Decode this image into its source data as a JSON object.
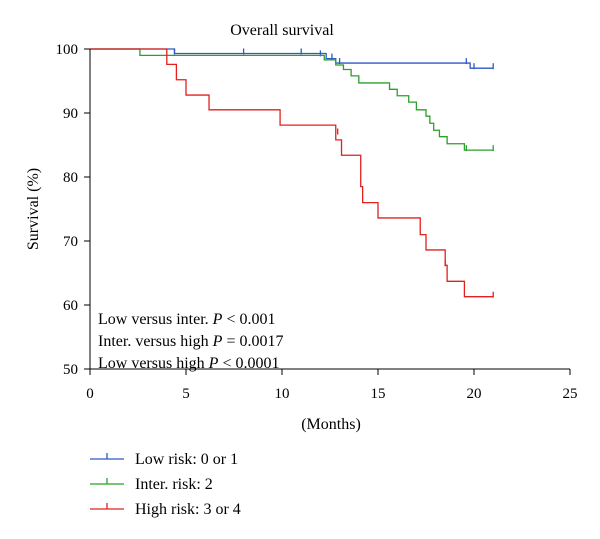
{
  "chart_data": {
    "type": "line",
    "step": true,
    "title": "Overall survival",
    "xlabel": "(Months)",
    "ylabel": "Survival (%)",
    "xlim": [
      0,
      25
    ],
    "ylim": [
      50,
      100
    ],
    "xticks": [
      0,
      5,
      10,
      15,
      20,
      25
    ],
    "yticks": [
      50,
      60,
      70,
      80,
      90,
      100
    ],
    "grid": false,
    "legend_placement": "bottom-left",
    "annotations": [
      {
        "before": "Low versus inter. ",
        "p": "P",
        "after": " < 0.001"
      },
      {
        "before": "Inter. versus high ",
        "p": "P",
        "after": " = 0.0017"
      },
      {
        "before": "Low versus high ",
        "p": "P",
        "after": " < 0.0001"
      }
    ],
    "series": [
      {
        "name": "Low risk: 0 or 1",
        "color": "#2e58c8",
        "steps": [
          [
            0,
            100
          ],
          [
            4.4,
            99.3
          ],
          [
            12.3,
            98.5
          ],
          [
            12.8,
            97.8
          ],
          [
            19.8,
            97.0
          ],
          [
            21,
            97.0
          ]
        ],
        "censored": [
          [
            4.4,
            99.3
          ],
          [
            8.0,
            99.3
          ],
          [
            11.0,
            99.3
          ],
          [
            12.0,
            99.0
          ],
          [
            12.6,
            98.5
          ],
          [
            13.0,
            97.8
          ],
          [
            19.6,
            97.8
          ],
          [
            20.0,
            97.0
          ],
          [
            21,
            97.0
          ]
        ]
      },
      {
        "name": "Inter. risk: 2",
        "color": "#2aa12a",
        "steps": [
          [
            0,
            100
          ],
          [
            2.6,
            99.0
          ],
          [
            12.2,
            98.3
          ],
          [
            12.8,
            97.5
          ],
          [
            13.2,
            96.8
          ],
          [
            13.6,
            95.8
          ],
          [
            14.0,
            94.7
          ],
          [
            15.6,
            93.7
          ],
          [
            16.0,
            92.7
          ],
          [
            16.6,
            91.7
          ],
          [
            17.0,
            90.5
          ],
          [
            17.5,
            89.5
          ],
          [
            17.7,
            88.4
          ],
          [
            17.9,
            87.3
          ],
          [
            18.2,
            86.3
          ],
          [
            18.6,
            85.2
          ],
          [
            19.5,
            84.2
          ],
          [
            21,
            84.2
          ]
        ],
        "censored": [
          [
            19.6,
            84.2
          ],
          [
            21,
            84.2
          ]
        ]
      },
      {
        "name": "High risk: 3 or 4",
        "color": "#e0211d",
        "steps": [
          [
            0,
            100
          ],
          [
            4.0,
            97.6
          ],
          [
            4.5,
            95.2
          ],
          [
            5.0,
            92.8
          ],
          [
            6.2,
            90.5
          ],
          [
            9.9,
            88.1
          ],
          [
            12.8,
            85.8
          ],
          [
            13.1,
            83.4
          ],
          [
            14.1,
            78.5
          ],
          [
            14.2,
            76.0
          ],
          [
            15.0,
            73.6
          ],
          [
            17.2,
            71.0
          ],
          [
            17.5,
            68.6
          ],
          [
            18.5,
            66.2
          ],
          [
            18.6,
            63.7
          ],
          [
            19.5,
            61.3
          ],
          [
            21,
            61.3
          ]
        ],
        "censored": [
          [
            12.9,
            86.8
          ],
          [
            18.5,
            66.2
          ],
          [
            21,
            61.3
          ]
        ]
      }
    ]
  }
}
